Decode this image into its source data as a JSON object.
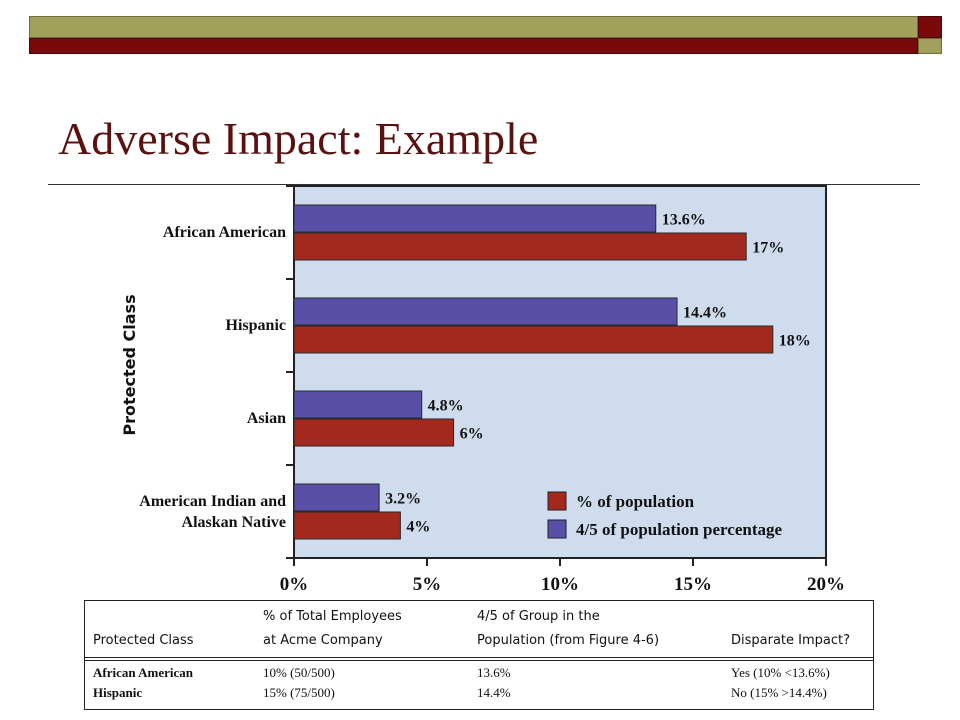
{
  "slide": {
    "title": "Adverse Impact: Example"
  },
  "chart_data": {
    "type": "bar",
    "orientation": "horizontal",
    "ylabel": "Protected Class",
    "categories": [
      "African American",
      "Hispanic",
      "Asian",
      "American Indian and\nAlaskan Native"
    ],
    "series": [
      {
        "name": "4/5 of population percentage",
        "color": "#5a4fa6",
        "values": [
          13.6,
          14.4,
          4.8,
          3.2
        ],
        "labels": [
          "13.6%",
          "14.4%",
          "4.8%",
          "3.2%"
        ]
      },
      {
        "name": "% of population",
        "color": "#a3291f",
        "values": [
          17,
          18,
          6,
          4
        ],
        "labels": [
          "17%",
          "18%",
          "6%",
          "4%"
        ]
      }
    ],
    "xticks": [
      "0%",
      "5%",
      "10%",
      "15%",
      "20%"
    ],
    "xlim": [
      0,
      20
    ],
    "legend": {
      "position": "bottom-right",
      "entries": [
        "% of population",
        "4/5 of population percentage"
      ]
    },
    "background": "#cfdcee"
  },
  "table": {
    "headers": {
      "col1": "Protected Class",
      "col2_line1": "% of Total Employees",
      "col2_line2": "at Acme Company",
      "col3_line1": "4/5 of Group in the",
      "col3_line2": "Population (from Figure 4-6)",
      "col4": "Disparate Impact?"
    },
    "rows": [
      {
        "cls": "African American",
        "pct": "10% (50/500)",
        "fourfifths": "13.6%",
        "impact": "Yes (10% <13.6%)"
      },
      {
        "cls": "Hispanic",
        "pct": "15% (75/500)",
        "fourfifths": "14.4%",
        "impact": "No (15% >14.4%)"
      }
    ]
  }
}
